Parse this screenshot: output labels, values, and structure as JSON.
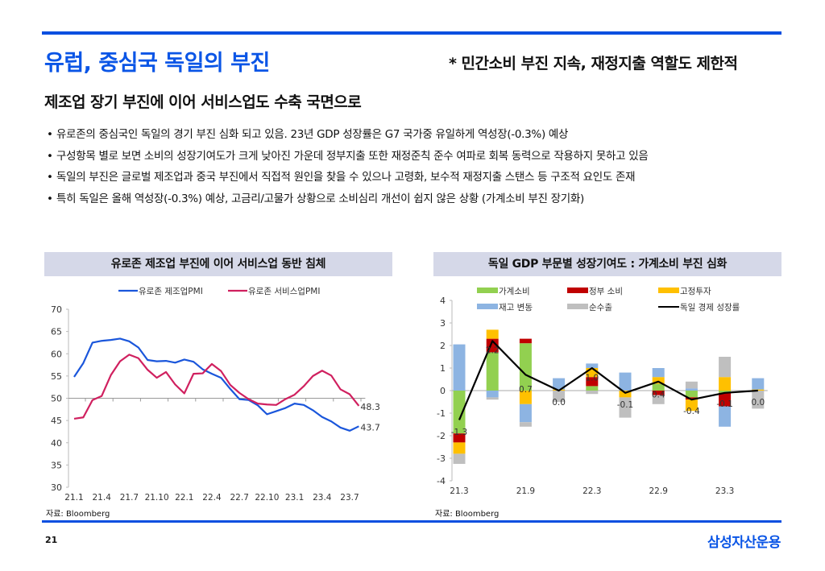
{
  "header": {
    "title": "유럽, 중심국 독일의 부진",
    "note": "*  민간소비 부진 지속, 재정지출 역할도 제한적",
    "subtitle": "제조업 장기 부진에 이어 서비스업도 수축 국면으로"
  },
  "bullets": [
    "유로존의 중심국인 독일의 경기 부진 심화 되고 있음. 23년 GDP 성장률은 G7 국가중 유일하게 역성장(-0.3%) 예상",
    "구성항목 별로 보면 소비의 성장기여도가 크게 낮아진 가운데 정부지출 또한 재정준칙 준수 여파로 회복 동력으로 작용하지 못하고 있음",
    "독일의 부진은 글로벌 제조업과 중국 부진에서 직접적 원인을 찾을 수 있으나 고령화, 보수적 재정지출 스탠스 등 구조적 요인도 존재",
    "특히 독일은 올해 역성장(-0.3%) 예상, 고금리/고물가 상황으로 소비심리 개선이 쉽지 않은 상황 (가계소비 부진 장기화)"
  ],
  "bullet_glyph": "•",
  "footer": {
    "page_number": "21",
    "brand": "삼성자산운용",
    "source_left": "자료: Bloomberg",
    "source_right": "자료: Bloomberg"
  },
  "chart_data": [
    {
      "type": "line",
      "title": "유로존 제조업 부진에 이어 서비스업 동반 침체",
      "xlabel": "",
      "ylabel": "",
      "ylim": [
        30,
        70
      ],
      "yticks": [
        30,
        35,
        40,
        45,
        50,
        55,
        60,
        65,
        70
      ],
      "x_tick_labels": [
        "21.1",
        "21.4",
        "21.7",
        "21.10",
        "22.1",
        "22.4",
        "22.7",
        "22.10",
        "23.1",
        "23.4",
        "23.7"
      ],
      "x_months": [
        "21.1",
        "21.2",
        "21.3",
        "21.4",
        "21.5",
        "21.6",
        "21.7",
        "21.8",
        "21.9",
        "21.10",
        "21.11",
        "21.12",
        "22.1",
        "22.2",
        "22.3",
        "22.4",
        "22.5",
        "22.6",
        "22.7",
        "22.8",
        "22.9",
        "22.10",
        "22.11",
        "22.12",
        "23.1",
        "23.2",
        "23.3",
        "23.4",
        "23.5",
        "23.6",
        "23.7",
        "23.8"
      ],
      "baseline": 50,
      "legend": "top-center",
      "series": [
        {
          "name": "유로존 제조업PMI",
          "color": "#1a56db",
          "values": [
            54.8,
            57.9,
            62.5,
            62.9,
            63.1,
            63.4,
            62.8,
            61.4,
            58.6,
            58.3,
            58.4,
            58.0,
            58.7,
            58.2,
            56.5,
            55.5,
            54.6,
            52.1,
            49.8,
            49.6,
            48.4,
            46.4,
            47.1,
            47.8,
            48.8,
            48.5,
            47.3,
            45.8,
            44.8,
            43.4,
            42.7,
            43.7
          ],
          "end_label": "43.7"
        },
        {
          "name": "유로존 서비스업PMI",
          "color": "#d0205f",
          "values": [
            45.4,
            45.7,
            49.6,
            50.5,
            55.2,
            58.3,
            59.8,
            59.0,
            56.4,
            54.6,
            55.9,
            53.1,
            51.1,
            55.5,
            55.6,
            57.7,
            56.1,
            53.0,
            51.2,
            49.8,
            48.8,
            48.6,
            48.5,
            49.8,
            50.8,
            52.7,
            55.0,
            56.2,
            55.1,
            52.0,
            50.9,
            48.3
          ],
          "end_label": "48.3"
        }
      ]
    },
    {
      "type": "bar",
      "subtype": "stacked-bar-with-line",
      "title": "독일 GDP 부문별 성장기여도 : 가계소비 부진 심화",
      "xlabel": "",
      "ylabel": "",
      "ylim": [
        -4,
        4
      ],
      "yticks": [
        -4,
        -3,
        -2,
        -1,
        0,
        1,
        2,
        3,
        4
      ],
      "categories": [
        "21.3",
        "21.6",
        "21.9",
        "21.12",
        "22.3",
        "22.6",
        "22.9",
        "22.12",
        "23.3",
        "23.6"
      ],
      "x_tick_labels": [
        "21.3",
        "",
        "21.9",
        "",
        "22.3",
        "",
        "22.9",
        "",
        "23.3",
        ""
      ],
      "legend": "top",
      "series": [
        {
          "name": "가계소비",
          "color": "#92d050",
          "values": [
            -1.9,
            1.7,
            2.1,
            0.0,
            0.2,
            0.0,
            0.3,
            -0.3,
            -0.1,
            0.0
          ]
        },
        {
          "name": "정부 소비",
          "color": "#c00000",
          "values": [
            -0.4,
            0.6,
            0.2,
            0.0,
            0.4,
            0.0,
            -0.2,
            -0.1,
            -0.6,
            0.0
          ]
        },
        {
          "name": "고정투자",
          "color": "#ffc000",
          "values": [
            -0.5,
            0.4,
            -0.6,
            0.05,
            0.4,
            -0.3,
            0.3,
            -0.5,
            0.6,
            0.05
          ]
        },
        {
          "name": "재고 변동",
          "color": "#8db4e2",
          "values": [
            2.05,
            -0.3,
            -0.8,
            0.5,
            0.2,
            0.8,
            0.4,
            0.1,
            -0.9,
            0.5
          ]
        },
        {
          "name": "순수출",
          "color": "#bfbfbf",
          "values": [
            -0.45,
            -0.1,
            -0.2,
            -0.5,
            -0.15,
            -0.9,
            -0.4,
            0.3,
            0.9,
            -0.8
          ]
        }
      ],
      "line": {
        "name": "독일 경제 성장률",
        "color": "#000000",
        "values": [
          -1.3,
          2.2,
          0.7,
          0.0,
          1.0,
          -0.1,
          0.4,
          -0.4,
          -0.1,
          0.0
        ],
        "labels": [
          "-1.3",
          "2.2",
          "0.7",
          "0.0",
          "1.0",
          "-0.1",
          "0.4",
          "-0.4",
          "-0.1",
          "0.0"
        ]
      }
    }
  ]
}
